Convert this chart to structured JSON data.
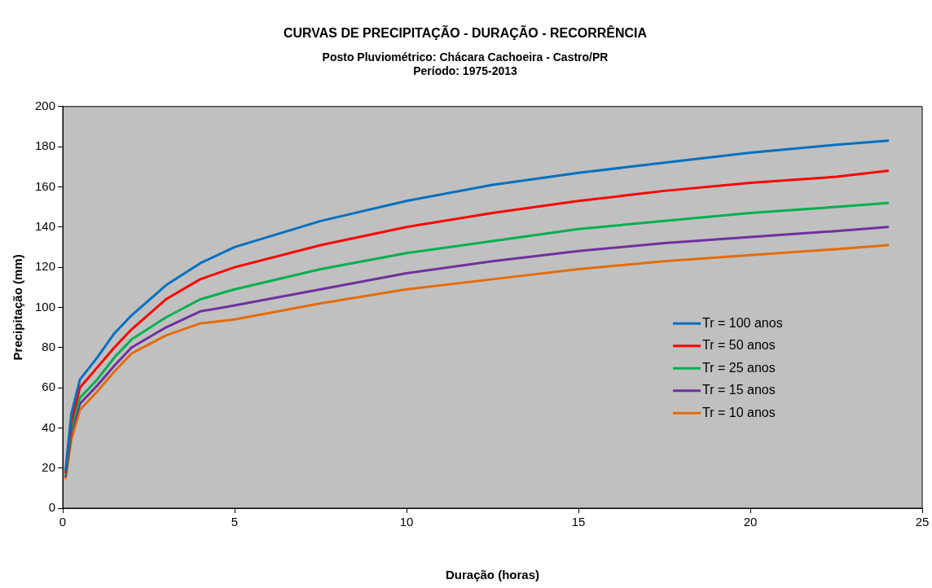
{
  "chart_data": {
    "type": "line",
    "title": "CURVAS DE PRECIPITAÇÃO - DURAÇÃO - RECORRÊNCIA",
    "subtitle": "Posto Pluviométrico: Chácara Cachoeira - Castro/PR\nPeríodo: 1975-2013",
    "xlabel": "Duração (horas)",
    "ylabel": "Precipitação (mm)",
    "x": [
      0.083,
      0.25,
      0.5,
      1,
      1.5,
      2,
      3,
      4,
      5,
      7.5,
      10,
      12.5,
      15,
      17.5,
      20,
      22.5,
      24
    ],
    "series": [
      {
        "name": "Tr = 100 anos",
        "color": "#0070c0",
        "values": [
          19,
          47,
          64,
          75,
          87,
          96,
          111,
          122,
          130,
          143,
          153,
          161,
          167,
          172,
          177,
          181,
          183
        ]
      },
      {
        "name": "Tr = 50 anos",
        "color": "#ff0000",
        "values": [
          18,
          43,
          60,
          70,
          80,
          89,
          104,
          114,
          120,
          131,
          140,
          147,
          153,
          158,
          162,
          165,
          168
        ]
      },
      {
        "name": "Tr = 25 anos",
        "color": "#00b050",
        "values": [
          17,
          40,
          55,
          64,
          75,
          84,
          95,
          104,
          109,
          119,
          127,
          133,
          139,
          143,
          147,
          150,
          152
        ]
      },
      {
        "name": "Tr = 15 anos",
        "color": "#7030a0",
        "values": [
          16,
          38,
          52,
          61,
          71,
          80,
          90,
          98,
          101,
          109,
          117,
          123,
          128,
          132,
          135,
          138,
          140
        ]
      },
      {
        "name": "Tr = 10 anos",
        "color": "#e46c0a",
        "values": [
          15,
          34,
          49,
          58,
          68,
          77,
          86,
          92,
          94,
          102,
          109,
          114,
          119,
          123,
          126,
          129,
          131
        ]
      }
    ],
    "xlim": [
      0,
      25
    ],
    "xticks": [
      0,
      5,
      10,
      15,
      20,
      25
    ],
    "ylim": [
      0,
      200
    ],
    "yticks": [
      0,
      20,
      40,
      60,
      80,
      100,
      120,
      140,
      160,
      180,
      200
    ],
    "grid": false,
    "legend": "right",
    "marker": "none",
    "line_style": "solid"
  }
}
